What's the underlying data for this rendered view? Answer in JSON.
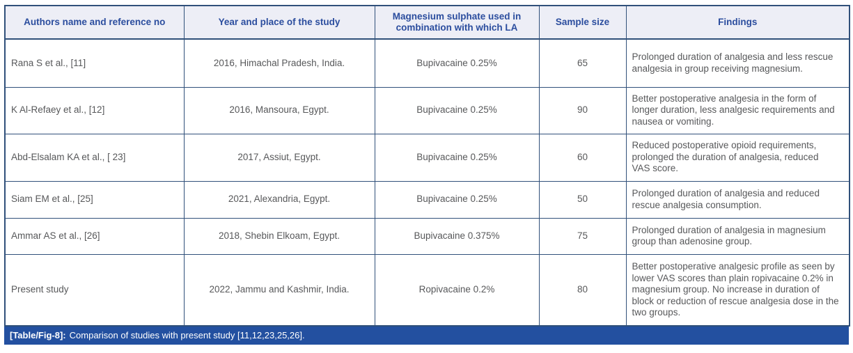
{
  "colors": {
    "header-text": "#2b4d9e",
    "header-bg": "#edeef6",
    "border": "#30507a",
    "body-text": "#57585a",
    "caption-bg": "#2350a0",
    "caption-text": "#ffffff"
  },
  "table": {
    "columns": [
      {
        "label": "Authors name and reference no"
      },
      {
        "label": "Year and place of the study"
      },
      {
        "label": "Magnesium sulphate used in combination with which LA"
      },
      {
        "label": "Sample size"
      },
      {
        "label": "Findings"
      }
    ],
    "rows": [
      {
        "cells": [
          "Rana S et al., [11]",
          "2016, Himachal Pradesh, India.",
          "Bupivacaine 0.25%",
          "65",
          "Prolonged duration of analgesia and less rescue analgesia in group receiving magnesium."
        ]
      },
      {
        "cells": [
          "K Al-Refaey et al., [12]",
          "2016, Mansoura, Egypt.",
          "Bupivacaine 0.25%",
          "90",
          "Better postoperative analgesia in the form of longer duration, less analgesic requirements and nausea or vomiting."
        ]
      },
      {
        "cells": [
          "Abd-Elsalam KA et al., [ 23]",
          "2017, Assiut, Egypt.",
          "Bupivacaine 0.25%",
          "60",
          "Reduced postoperative opioid requirements, prolonged the duration of analgesia, reduced VAS score."
        ]
      },
      {
        "cells": [
          "Siam EM et al., [25]",
          "2021, Alexandria, Egypt.",
          "Bupivacaine 0.25%",
          "50",
          "Prolonged duration of analgesia and reduced rescue analgesia consumption."
        ]
      },
      {
        "cells": [
          "Ammar AS et al., [26]",
          "2018, Shebin Elkoam, Egypt.",
          "Bupivacaine 0.375%",
          "75",
          "Prolonged duration of analgesia in magnesium group than adenosine group."
        ]
      },
      {
        "cells": [
          "Present study",
          "2022, Jammu and Kashmir, India.",
          "Ropivacaine 0.2%",
          "80",
          "Better postoperative analgesic profile as seen by lower VAS scores than plain ropivacaine 0.2% in magnesium group. No increase in duration of block or reduction of rescue analgesia dose in the two groups."
        ]
      }
    ],
    "caption": {
      "label": "[Table/Fig-8]:",
      "text": "Comparison of studies with present study [11,12,23,25,26]."
    }
  }
}
